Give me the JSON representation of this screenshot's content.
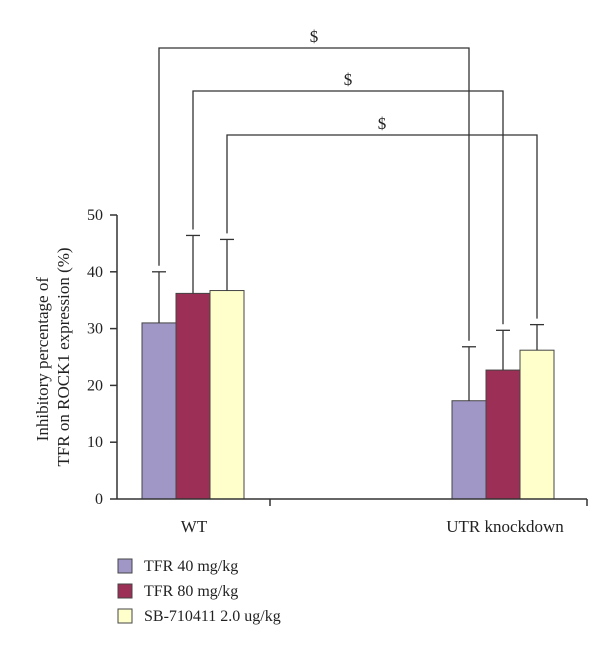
{
  "chart_data": {
    "type": "bar",
    "ylabel_lines": [
      "Inhibitory percentage of",
      "TFR on ROCK1 expression (%)"
    ],
    "xlabel": "",
    "ylim": [
      0,
      50
    ],
    "yticks": [
      0,
      10,
      20,
      30,
      40,
      50
    ],
    "grid": false,
    "legend_position": "bottom-left",
    "categories": [
      "WT",
      "UTR knockdown"
    ],
    "series": [
      {
        "name": "TFR 40 mg/kg",
        "color": "#a197c6",
        "values": [
          31,
          17.3
        ],
        "errors": [
          9,
          9.5
        ]
      },
      {
        "name": "TFR 80 mg/kg",
        "color": "#9b2f55",
        "values": [
          36.2,
          22.7
        ],
        "errors": [
          10.2,
          7
        ]
      },
      {
        "name": "SB-710411 2.0 ug/kg",
        "color": "#ffffcc",
        "values": [
          36.7,
          26.2
        ],
        "errors": [
          9,
          4.5
        ]
      }
    ],
    "annotations": [
      {
        "text": "$",
        "series": 0
      },
      {
        "text": "$",
        "series": 1
      },
      {
        "text": "$",
        "series": 2
      }
    ]
  }
}
